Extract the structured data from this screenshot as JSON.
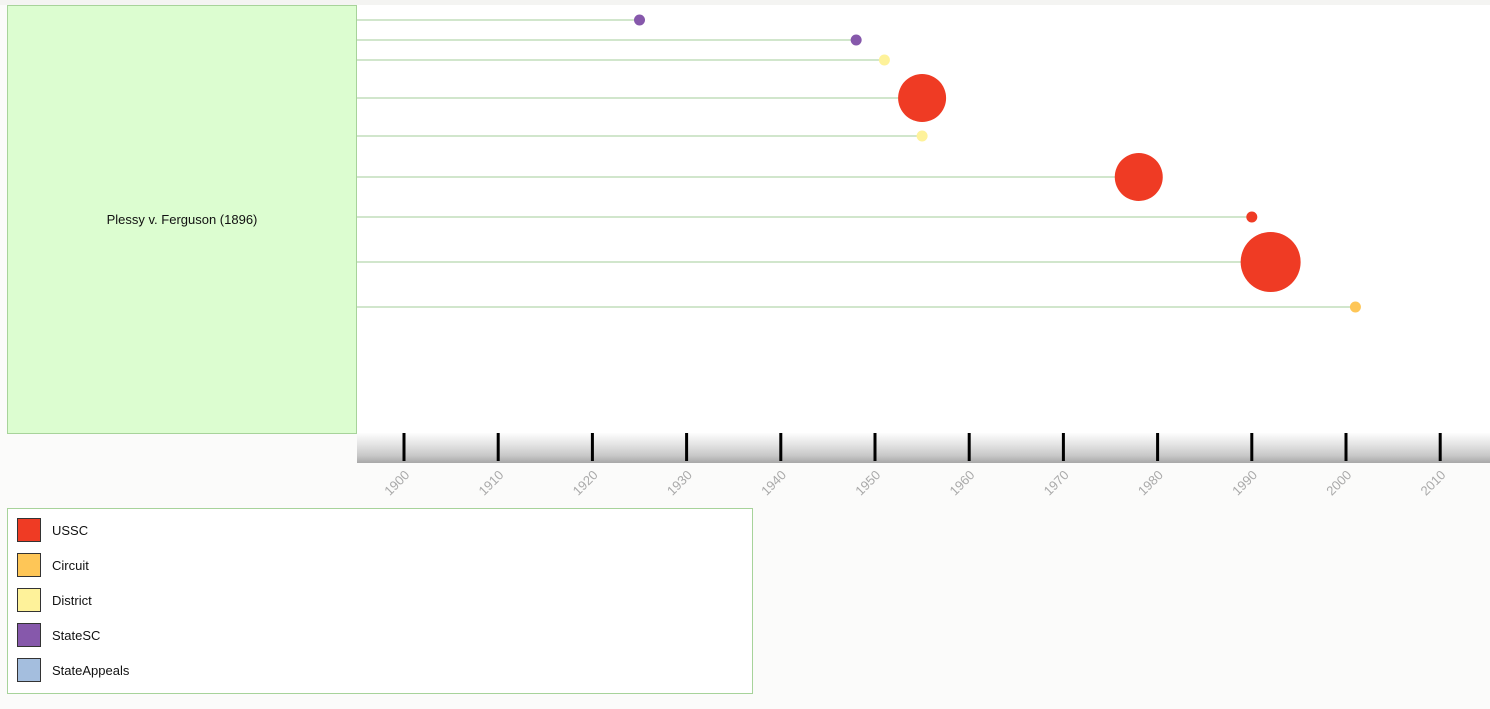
{
  "case": {
    "title": "Plessy v. Ferguson (1896)"
  },
  "chart_data": {
    "type": "scatter",
    "title": "",
    "xlabel": "",
    "ylabel": "",
    "xlim": [
      1895,
      2015
    ],
    "x_ticks": [
      1900,
      1910,
      1920,
      1930,
      1940,
      1950,
      1960,
      1970,
      1980,
      1990,
      2000,
      2010
    ],
    "grid": false,
    "legend_position": "bottom-left",
    "points": [
      {
        "year": 1925,
        "court": "StateSC",
        "size": "small"
      },
      {
        "year": 1948,
        "court": "StateSC",
        "size": "small"
      },
      {
        "year": 1951,
        "court": "District",
        "size": "small"
      },
      {
        "year": 1955,
        "court": "USSC",
        "size": "large"
      },
      {
        "year": 1955,
        "court": "District",
        "size": "small"
      },
      {
        "year": 1978,
        "court": "USSC",
        "size": "large"
      },
      {
        "year": 1990,
        "court": "USSC",
        "size": "small"
      },
      {
        "year": 1992,
        "court": "USSC",
        "size": "extra-large"
      },
      {
        "year": 2001,
        "court": "Circuit",
        "size": "small"
      }
    ]
  },
  "legend": {
    "items": [
      {
        "label": "USSC",
        "color": "#ef3b24"
      },
      {
        "label": "Circuit",
        "color": "#fec657"
      },
      {
        "label": "District",
        "color": "#fef29a"
      },
      {
        "label": "StateSC",
        "color": "#8658ab"
      },
      {
        "label": "StateAppeals",
        "color": "#a4bede"
      }
    ]
  },
  "colors": {
    "line": "#a3cc9a",
    "case_box": "#dcfdd0",
    "tick_label": "#a9a9a9",
    "tick": "#000000"
  }
}
